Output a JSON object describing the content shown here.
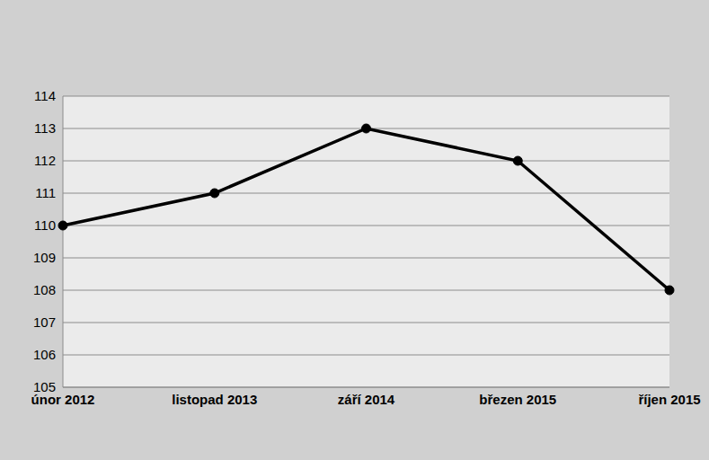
{
  "chart_data": {
    "type": "line",
    "categories": [
      "únor 2012",
      "listopad 2013",
      "září 2014",
      "březen 2015",
      "říjen 2015"
    ],
    "values": [
      110,
      111,
      113,
      112,
      108
    ],
    "color": "#000000",
    "marker": "circle",
    "line_style": "solid",
    "ylim": [
      105,
      114
    ],
    "yticks": [
      105,
      106,
      107,
      108,
      109,
      110,
      111,
      112,
      113,
      114
    ],
    "grid": true
  }
}
